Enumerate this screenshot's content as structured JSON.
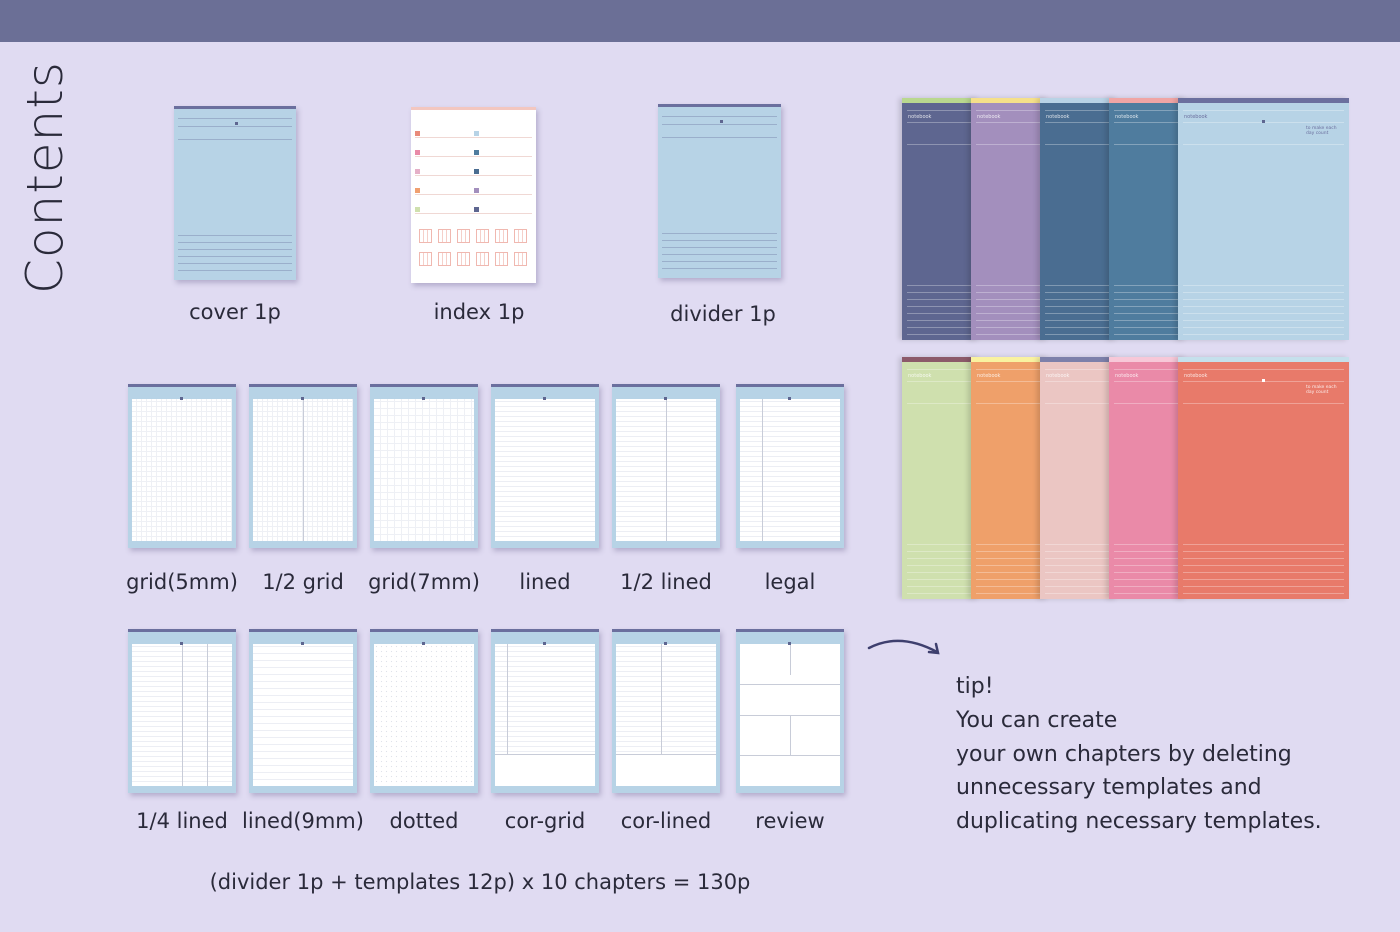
{
  "title": "Contents",
  "singles": [
    {
      "label": "cover 1p"
    },
    {
      "label": "index 1p"
    },
    {
      "label": "divider 1p"
    }
  ],
  "templates_row1": [
    {
      "label": "grid(5mm)",
      "type": "grid"
    },
    {
      "label": "1/2 grid",
      "type": "half-grid"
    },
    {
      "label": "grid(7mm)",
      "type": "grid7"
    },
    {
      "label": "lined",
      "type": "lined"
    },
    {
      "label": "1/2 lined",
      "type": "half-lined"
    },
    {
      "label": "legal",
      "type": "legal"
    }
  ],
  "templates_row2": [
    {
      "label": "1/4 lined",
      "type": "quarter"
    },
    {
      "label": "lined(9mm)",
      "type": "lined9"
    },
    {
      "label": "dotted",
      "type": "dotted"
    },
    {
      "label": "cor-grid",
      "type": "corgrid"
    },
    {
      "label": "cor-lined",
      "type": "corlined"
    },
    {
      "label": "review",
      "type": "review"
    }
  ],
  "formula": "(divider 1p + templates 12p) x 10 chapters = 130p",
  "tip": [
    "tip!",
    "You can create",
    "your own chapters by deleting",
    "unnecessary templates and",
    "duplicating necessary templates."
  ],
  "cover_text": {
    "notebook": "notebook",
    "motto": "to make each day count"
  },
  "stacks": [
    [
      {
        "color": "#5e6690",
        "border": "#b9d88f"
      },
      {
        "color": "#a38fbd",
        "border": "#f5e08a"
      },
      {
        "color": "#4a6d91",
        "border": "#b9d3e6"
      },
      {
        "color": "#4f7c9e",
        "border": "#f0a5a5"
      },
      {
        "color": "#b7d3e6",
        "border": "#6b6f9e"
      }
    ],
    [
      {
        "color": "#cfe0ae",
        "border": "#8c5a6a"
      },
      {
        "color": "#efa06a",
        "border": "#f9f2a0"
      },
      {
        "color": "#ebc6c3",
        "border": "#7d80aa"
      },
      {
        "color": "#ea8aa8",
        "border": "#f7c8d8"
      },
      {
        "color": "#e87a6a",
        "border": "#c5e0ec"
      }
    ]
  ]
}
